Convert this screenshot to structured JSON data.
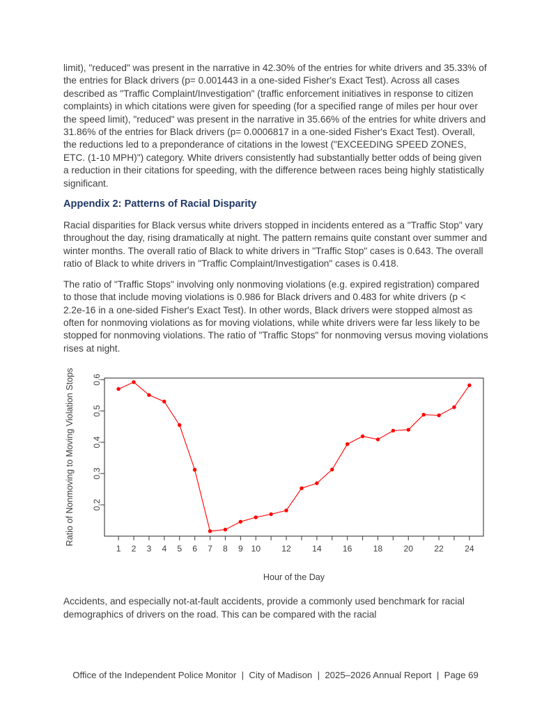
{
  "document": {
    "paragraph_1": "limit), \"reduced\" was present in the narrative in 42.30% of the entries for white drivers and 35.33% of the entries for Black drivers (p= 0.001443 in a one-sided Fisher's Exact Test). Across all cases described as \"Traffic Complaint/Investigation\" (traffic enforcement initiatives in response to citizen complaints) in which citations were given for speeding (for a specified range of miles per hour over the speed limit), \"reduced\" was present in the narrative in 35.66% of the entries for white drivers and 31.86% of the entries for Black drivers (p= 0.0006817 in a one-sided Fisher's Exact Test). Overall, the reductions led to a preponderance of citations in the lowest (\"EXCEEDING SPEED ZONES, ETC. (1-10 MPH)\") category. White drivers consistently had substantially better odds of being given a reduction in their citations for speeding, with the difference between races being highly statistically significant.",
    "heading": "Appendix 2: Patterns of Racial Disparity",
    "paragraph_2": "Racial disparities for Black versus white drivers stopped in incidents entered as a \"Traffic Stop\" vary throughout the day, rising dramatically at night. The pattern remains quite constant over summer and winter months. The overall ratio of Black to white drivers in \"Traffic Stop\" cases is 0.643. The overall ratio of Black to white drivers in \"Traffic Complaint/Investigation\" cases is 0.418.",
    "paragraph_3": "The ratio of \"Traffic Stops\" involving only nonmoving violations (e.g. expired registration) compared to those that include moving violations is 0.986 for Black drivers and 0.483 for white drivers (p < 2.2e-16 in a one-sided Fisher's Exact Test). In other words, Black drivers were stopped almost as often for nonmoving violations as for moving violations, while white drivers were far less likely to be stopped for nonmoving violations. The ratio of \"Traffic Stops\" for nonmoving versus moving violations rises at night.",
    "paragraph_4": "Accidents, and especially not-at-fault accidents, provide a commonly used benchmark for racial demographics of drivers on the road. This can be compared with the racial",
    "footer": "Office of the Independent Police Monitor  |  City of Madison  |  2025–2026 Annual Report  |  Page 69"
  },
  "colors": {
    "heading": "#1f3864",
    "body_text": "#3d3d3d",
    "chart_line": "#ff0000",
    "chart_axis": "#4a4a4a"
  },
  "chart_data": {
    "type": "line",
    "title": "",
    "xlabel": "Hour of the Day",
    "ylabel": "Ratio of Nonmoving to Moving Violation Stops",
    "x": [
      1,
      2,
      3,
      4,
      5,
      6,
      7,
      8,
      9,
      10,
      11,
      12,
      13,
      14,
      15,
      16,
      17,
      18,
      19,
      20,
      21,
      22,
      23,
      24
    ],
    "y": [
      0.57,
      0.592,
      0.551,
      0.53,
      0.455,
      0.312,
      0.116,
      0.121,
      0.146,
      0.16,
      0.17,
      0.182,
      0.253,
      0.269,
      0.313,
      0.394,
      0.419,
      0.409,
      0.437,
      0.44,
      0.488,
      0.486,
      0.512,
      0.582
    ],
    "xlim": [
      0.08,
      24.92
    ],
    "ylim": [
      0.1,
      0.605
    ],
    "x_ticks": [
      1,
      2,
      3,
      4,
      5,
      6,
      7,
      8,
      9,
      10,
      11,
      12,
      13,
      14,
      15,
      16,
      17,
      18,
      19,
      20,
      21,
      22,
      23,
      24
    ],
    "x_tick_labels": [
      1,
      2,
      3,
      4,
      5,
      6,
      7,
      8,
      9,
      10,
      12,
      14,
      16,
      18,
      20,
      22,
      24
    ],
    "y_ticks": [
      0.2,
      0.3,
      0.4,
      0.5,
      0.6
    ],
    "y_tick_labels": [
      "0.2",
      "0.3",
      "0.4",
      "0.5",
      "0.6"
    ],
    "line_color": "#ff0000",
    "marker": "circle",
    "marker_color": "#ff0000",
    "axis_color": "#4a4a4a",
    "grid": false,
    "legend": "none"
  }
}
